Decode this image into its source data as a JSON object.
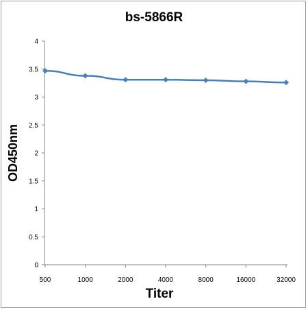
{
  "chart_data": {
    "type": "line",
    "title": "bs-5866R",
    "xlabel": "Titer",
    "ylabel": "OD450nm",
    "categories": [
      "500",
      "1000",
      "2000",
      "4000",
      "8000",
      "16000",
      "32000"
    ],
    "series": [
      {
        "values": [
          3.47,
          3.38,
          3.31,
          3.31,
          3.3,
          3.28,
          3.26
        ]
      }
    ],
    "ylim": [
      0,
      4
    ],
    "yticks": [
      "0",
      "0.5",
      "1",
      "1.5",
      "2",
      "2.5",
      "3",
      "3.5",
      "4"
    ],
    "grid": false,
    "legend": "none",
    "colors": {
      "series": "#4a7ebb",
      "axis": "#868686"
    }
  }
}
